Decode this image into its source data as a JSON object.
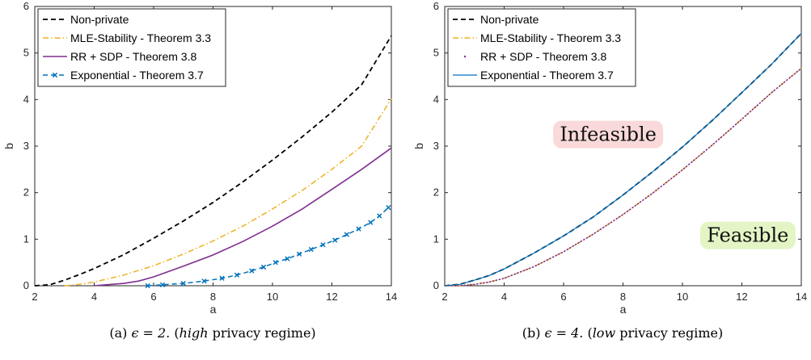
{
  "colors": {
    "non_private": "#000000",
    "mle": "#EDB120",
    "rr_sdp": "#7E2F8E",
    "exponential": "#0072BD",
    "infeasible_bg": "#F9D9D9",
    "feasible_bg": "#E3F5C4"
  },
  "chart_data": [
    {
      "type": "line",
      "caption_prefix": "(a) ",
      "caption_math": "ϵ = 2.",
      "caption_open": " (",
      "caption_em": "high",
      "caption_rest": " privacy regime)",
      "xlabel": "a",
      "ylabel": "b",
      "xlim": [
        2,
        14
      ],
      "ylim": [
        0,
        6
      ],
      "xticks": [
        "2",
        "4",
        "6",
        "8",
        "10",
        "12",
        "14"
      ],
      "yticks": [
        "0",
        "1",
        "2",
        "3",
        "4",
        "5",
        "6"
      ],
      "legend_position": "top-left",
      "series": [
        {
          "name": "Non-private",
          "style": "dashed",
          "color_key": "non_private",
          "x": [
            2.0,
            2.5,
            3.0,
            3.5,
            4.0,
            5.0,
            6.0,
            7.0,
            8.0,
            9.0,
            10.0,
            11.0,
            12.0,
            13.0,
            14.0
          ],
          "y": [
            0.0,
            0.02,
            0.12,
            0.24,
            0.37,
            0.67,
            1.02,
            1.39,
            1.79,
            2.23,
            2.7,
            3.2,
            3.73,
            4.32,
            5.37
          ]
        },
        {
          "name": "MLE-Stability - Theorem 3.3",
          "style": "dashdot",
          "color_key": "mle",
          "x": [
            3.0,
            3.5,
            4.0,
            5.0,
            6.0,
            7.0,
            8.0,
            9.0,
            10.0,
            11.0,
            12.0,
            13.0,
            14.0
          ],
          "y": [
            0.0,
            0.03,
            0.08,
            0.23,
            0.43,
            0.68,
            0.96,
            1.28,
            1.65,
            2.05,
            2.5,
            3.0,
            4.02
          ]
        },
        {
          "name": "RR + SDP - Theorem 3.8",
          "style": "solid",
          "color_key": "rr_sdp",
          "x": [
            4.0,
            5.0,
            5.5,
            6.0,
            7.0,
            8.0,
            9.0,
            10.0,
            11.0,
            12.0,
            13.0,
            14.0
          ],
          "y": [
            0.0,
            0.05,
            0.1,
            0.19,
            0.42,
            0.66,
            0.95,
            1.28,
            1.65,
            2.07,
            2.5,
            2.96
          ]
        },
        {
          "name": "Exponential - Theorem 3.7",
          "style": "dashed-markers",
          "color_key": "exponential",
          "x": [
            5.8,
            6.3,
            7.0,
            7.7,
            8.3,
            8.8,
            9.3,
            9.7,
            10.1,
            10.5,
            10.9,
            11.3,
            11.7,
            12.1,
            12.5,
            12.9,
            13.3,
            13.6,
            13.9
          ],
          "y": [
            0.0,
            0.02,
            0.05,
            0.1,
            0.16,
            0.23,
            0.32,
            0.4,
            0.5,
            0.58,
            0.68,
            0.78,
            0.88,
            0.98,
            1.1,
            1.22,
            1.36,
            1.5,
            1.68
          ]
        }
      ]
    },
    {
      "type": "line",
      "caption_prefix": "(b) ",
      "caption_math": "ϵ = 4.",
      "caption_open": " (",
      "caption_em": "low",
      "caption_rest": " privacy regime)",
      "xlabel": "a",
      "ylabel": "b",
      "xlim": [
        2,
        14
      ],
      "ylim": [
        0,
        6
      ],
      "xticks": [
        "2",
        "4",
        "6",
        "8",
        "10",
        "12",
        "14"
      ],
      "yticks": [
        "0",
        "1",
        "2",
        "3",
        "4",
        "5",
        "6"
      ],
      "legend_position": "top-left",
      "annotations": [
        "Infeasible",
        "Feasible"
      ],
      "series": [
        {
          "name": "Non-private",
          "style": "dashed",
          "color_key": "non_private",
          "x": [
            2.0,
            2.5,
            3.0,
            3.5,
            4.0,
            5.0,
            6.0,
            7.0,
            8.0,
            9.0,
            10.0,
            11.0,
            12.0,
            13.0,
            14.0
          ],
          "y": [
            0.0,
            0.03,
            0.12,
            0.22,
            0.36,
            0.7,
            1.07,
            1.48,
            1.95,
            2.45,
            2.98,
            3.55,
            4.15,
            4.76,
            5.42
          ]
        },
        {
          "name": "MLE-Stability - Theorem 3.3",
          "style": "dashdot",
          "color_key": "mle",
          "x": [
            2.0,
            2.5,
            3.0,
            3.5,
            4.0,
            5.0,
            6.0,
            7.0,
            8.0,
            9.0,
            10.0,
            11.0,
            12.0,
            13.0,
            14.0
          ],
          "y": [
            0.0,
            0.0,
            0.03,
            0.08,
            0.16,
            0.41,
            0.73,
            1.11,
            1.53,
            1.99,
            2.49,
            3.02,
            3.58,
            4.15,
            4.67
          ]
        },
        {
          "name": "RR + SDP - Theorem 3.8",
          "style": "dotted",
          "color_key": "rr_sdp",
          "x": [
            2.0,
            2.5,
            3.0,
            3.5,
            4.0,
            5.0,
            6.0,
            7.0,
            8.0,
            9.0,
            10.0,
            11.0,
            12.0,
            13.0,
            14.0
          ],
          "y": [
            0.0,
            0.0,
            0.03,
            0.08,
            0.16,
            0.41,
            0.73,
            1.11,
            1.53,
            1.99,
            2.49,
            3.02,
            3.58,
            4.15,
            4.67
          ]
        },
        {
          "name": "Exponential - Theorem 3.7",
          "style": "solid-thin",
          "color_key": "exponential",
          "x": [
            2.0,
            2.5,
            3.0,
            3.5,
            4.0,
            5.0,
            6.0,
            7.0,
            8.0,
            9.0,
            10.0,
            11.0,
            12.0,
            13.0,
            14.0
          ],
          "y": [
            0.0,
            0.03,
            0.12,
            0.22,
            0.36,
            0.7,
            1.07,
            1.48,
            1.95,
            2.45,
            2.98,
            3.55,
            4.15,
            4.76,
            5.42
          ]
        }
      ]
    }
  ]
}
